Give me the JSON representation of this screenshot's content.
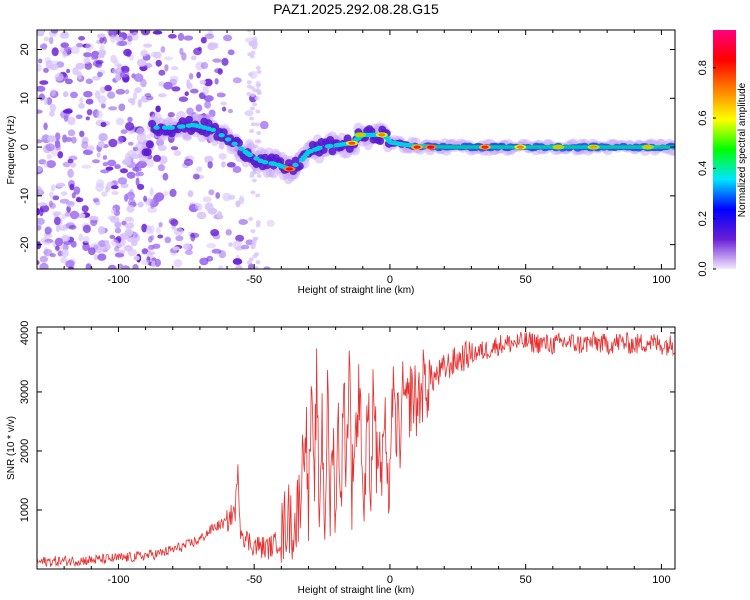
{
  "title": "PAZ1.2025.292.08.28.G15",
  "colors": {
    "snr_line": "#e83030",
    "track_core": "#00c8a0",
    "scatter_purple": "#6a1fd6",
    "frame": "#000000"
  },
  "chart_data": [
    {
      "type": "heatmap",
      "name": "spectrogram",
      "title": "PAZ1.2025.292.08.28.G15",
      "xlabel": "Height of straight line (km)",
      "ylabel": "Frequency (Hz)",
      "xlim": [
        -130,
        105
      ],
      "ylim": [
        -25,
        24
      ],
      "xticks": [
        -100,
        -50,
        0,
        50,
        100
      ],
      "yticks": [
        -20,
        -10,
        0,
        10,
        20
      ],
      "xtick_labels": [
        "-100",
        "-50",
        "0",
        "50",
        "100"
      ],
      "ytick_labels": [
        "-20",
        "-10",
        "0",
        "10",
        "20"
      ],
      "colorbar": {
        "label": "Normalized spectral amplitude",
        "range": [
          0,
          0.95
        ],
        "ticks": [
          0.0,
          0.2,
          0.4,
          0.6,
          0.8
        ],
        "tick_labels": [
          "0.0",
          "0.2",
          "0.4",
          "0.6",
          "0.8"
        ],
        "colormap": [
          "#f2e8ff",
          "#6a1fd6",
          "#0000ff",
          "#00e5ff",
          "#00ff00",
          "#ffff00",
          "#ff8000",
          "#ff0000",
          "#ff0080"
        ]
      },
      "track": [
        {
          "x": -88,
          "y": 4
        },
        {
          "x": -80,
          "y": 4
        },
        {
          "x": -72,
          "y": 4.5
        },
        {
          "x": -65,
          "y": 3.5
        },
        {
          "x": -58,
          "y": 1
        },
        {
          "x": -52,
          "y": -1.5
        },
        {
          "x": -47,
          "y": -3
        },
        {
          "x": -42,
          "y": -3.5
        },
        {
          "x": -37,
          "y": -4.5
        },
        {
          "x": -33,
          "y": -3
        },
        {
          "x": -30,
          "y": -1
        },
        {
          "x": -25,
          "y": 0
        },
        {
          "x": -18,
          "y": 0.5
        },
        {
          "x": -14,
          "y": 0.8
        },
        {
          "x": -10,
          "y": 2.5
        },
        {
          "x": -5,
          "y": 2.5
        },
        {
          "x": -2,
          "y": 2.5
        },
        {
          "x": 0,
          "y": 1
        },
        {
          "x": 5,
          "y": 0.5
        },
        {
          "x": 10,
          "y": 0.2
        },
        {
          "x": 20,
          "y": 0
        },
        {
          "x": 40,
          "y": 0
        },
        {
          "x": 60,
          "y": 0
        },
        {
          "x": 80,
          "y": 0
        },
        {
          "x": 105,
          "y": 0
        }
      ],
      "hotspots": [
        {
          "x": -37,
          "y": -4.5,
          "v": 0.9
        },
        {
          "x": -11,
          "y": 2.5,
          "v": 0.7
        },
        {
          "x": -3,
          "y": 2.5,
          "v": 0.75
        },
        {
          "x": -14,
          "y": 0.8,
          "v": 0.8
        },
        {
          "x": 10,
          "y": 0,
          "v": 0.85
        },
        {
          "x": 15,
          "y": 0,
          "v": 0.9
        },
        {
          "x": 35,
          "y": 0,
          "v": 0.85
        },
        {
          "x": 48,
          "y": 0,
          "v": 0.75
        },
        {
          "x": 62,
          "y": 0,
          "v": 0.7
        },
        {
          "x": 75,
          "y": 0,
          "v": 0.72
        },
        {
          "x": 95,
          "y": 0,
          "v": 0.7
        }
      ]
    },
    {
      "type": "line",
      "name": "snr",
      "xlabel": "Height of straight line (km)",
      "ylabel": "SNR (10 * v/v)",
      "xlim": [
        -130,
        105
      ],
      "ylim": [
        0,
        4100
      ],
      "xticks": [
        -100,
        -50,
        0,
        50,
        100
      ],
      "yticks": [
        1000,
        2000,
        3000,
        4000
      ],
      "xtick_labels": [
        "-100",
        "-50",
        "0",
        "50",
        "100"
      ],
      "ytick_labels": [
        "1000",
        "2000",
        "3000",
        "4000"
      ],
      "series": [
        {
          "name": "SNR",
          "x": [
            -130,
            -110,
            -95,
            -85,
            -75,
            -70,
            -65,
            -60,
            -57,
            -56,
            -55,
            -53,
            -50,
            -45,
            -40,
            -38,
            -35,
            -33,
            -31,
            -30,
            -29,
            -28,
            -27,
            -26,
            -25,
            -24,
            -23,
            -22,
            -21,
            -20,
            -19,
            -18,
            -17,
            -16,
            -15,
            -14,
            -13,
            -12,
            -11,
            -10,
            -9,
            -8,
            -7,
            -6,
            -5,
            -4,
            -3,
            -2,
            -1,
            0,
            1,
            2,
            3,
            4,
            5,
            6,
            8,
            10,
            12,
            15,
            18,
            20,
            25,
            30,
            35,
            40,
            50,
            60,
            65,
            70,
            75,
            80,
            85,
            90,
            95,
            100,
            105
          ],
          "y": [
            120,
            150,
            200,
            260,
            400,
            500,
            700,
            800,
            1000,
            1600,
            700,
            500,
            400,
            350,
            500,
            900,
            700,
            1300,
            2600,
            900,
            2800,
            1300,
            3100,
            900,
            2600,
            700,
            2900,
            1000,
            2300,
            900,
            2500,
            1200,
            3000,
            1700,
            3700,
            1300,
            2300,
            2400,
            3400,
            1100,
            1500,
            2900,
            1200,
            3500,
            1700,
            2200,
            1400,
            2700,
            1000,
            1800,
            3000,
            2300,
            2500,
            2200,
            3100,
            2600,
            3000,
            2800,
            3100,
            3200,
            3300,
            3400,
            3550,
            3650,
            3700,
            3800,
            3850,
            3800,
            3850,
            3800,
            3850,
            3800,
            3850,
            3800,
            3850,
            3800,
            3800
          ]
        }
      ]
    }
  ]
}
